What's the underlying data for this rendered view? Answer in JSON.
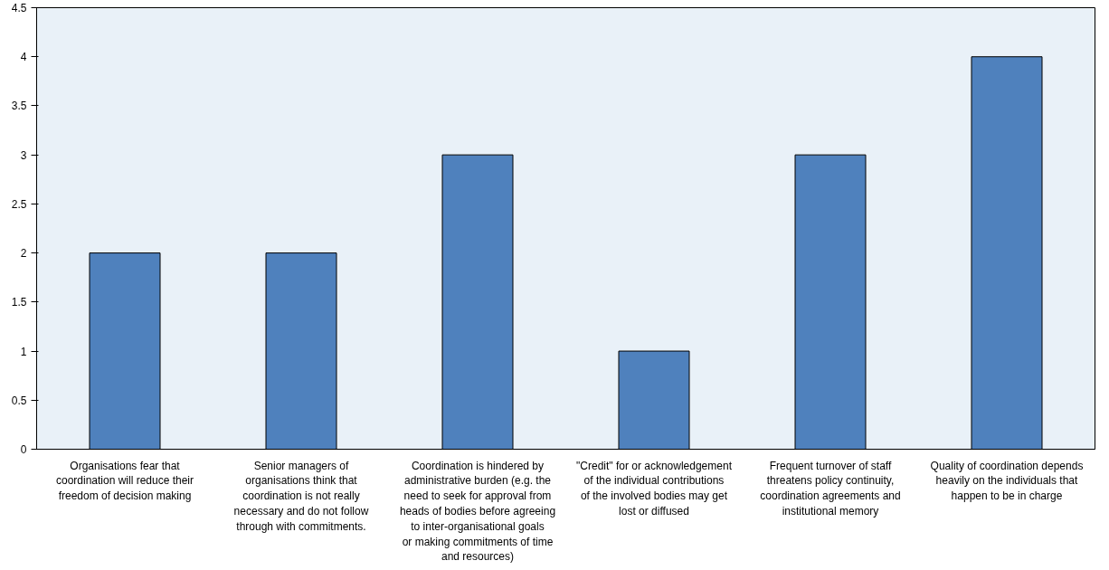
{
  "chart_data": {
    "type": "bar",
    "categories": [
      "Organisations fear that coordination will reduce their freedom of decision making",
      "Senior managers of organisations think that coordination is not really necessary and do not follow through with commitments.",
      "Coordination is hindered by administrative burden (e.g. the need to seek for approval from heads of bodies before agreeing to inter-organisational goals or making commitments of time and resources)",
      "\"Credit\" for or acknowledgement of the individual contributions of the involved bodies may get lost or diffused",
      "Frequent turnover of staff threatens policy continuity, coordination agreements and institutional memory",
      "Quality of coordination depends heavily on the individuals that happen to be in charge"
    ],
    "values": [
      2,
      2,
      3,
      1,
      3,
      4
    ],
    "color": "#4f81bd",
    "ylim": [
      0,
      4.5
    ],
    "yticks": [
      0,
      0.5,
      1,
      1.5,
      2,
      2.5,
      3,
      3.5,
      4,
      4.5
    ],
    "grid": false
  }
}
